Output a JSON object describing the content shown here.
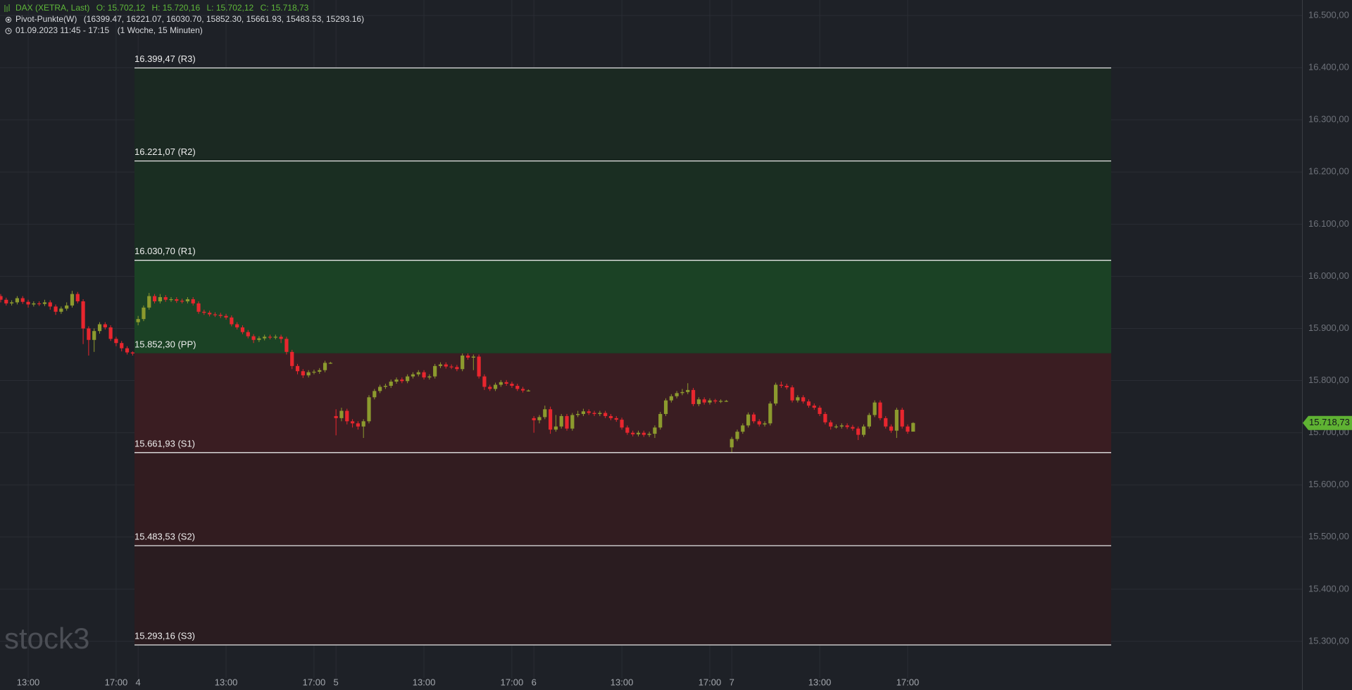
{
  "chart_data": {
    "type": "candlestick",
    "instrument": "DAX (XETRA, Last)",
    "ohlc_labels": [
      "O: 15.702,12",
      "H: 15.720,16",
      "L: 15.702,12",
      "C: 15.718,73"
    ],
    "indicator": "Pivot-Punkte(W)",
    "indicator_values": "(16399.47,  16221.07,  16030.70,  15852.30,  15661.93,  15483.53,  15293.16)",
    "period": "01.09.2023 11:45 - 17:15",
    "period_detail": "(1 Woche, 15 Minuten)",
    "watermark": "stock3",
    "last_price": {
      "value": 15718.73,
      "label": "15.718,73"
    },
    "colors": {
      "up": "#8c9a2e",
      "down": "#e8262e",
      "price_tag": "#5fb233"
    },
    "grid": true,
    "ylim": [
      15240.5,
      16529.75
    ],
    "yticks": [
      {
        "value": 16500,
        "label": "16.500,00"
      },
      {
        "value": 16400,
        "label": "16.400,00"
      },
      {
        "value": 16300,
        "label": "16.300,00"
      },
      {
        "value": 16200,
        "label": "16.200,00"
      },
      {
        "value": 16100,
        "label": "16.100,00"
      },
      {
        "value": 16000,
        "label": "16.000,00"
      },
      {
        "value": 15900,
        "label": "15.900,00"
      },
      {
        "value": 15800,
        "label": "15.800,00"
      },
      {
        "value": 15700,
        "label": "15.700,00"
      },
      {
        "value": 15600,
        "label": "15.600,00"
      },
      {
        "value": 15500,
        "label": "15.500,00"
      },
      {
        "value": 15400,
        "label": "15.400,00"
      },
      {
        "value": 15300,
        "label": "15.300,00"
      }
    ],
    "pivots": [
      {
        "value": 16399.47,
        "label": "16.399,47 (R3)"
      },
      {
        "value": 16221.07,
        "label": "16.221,07 (R2)"
      },
      {
        "value": 16030.7,
        "label": "16.030,70 (R1)"
      },
      {
        "value": 15852.3,
        "label": "15.852,30 (PP)",
        "line": false
      },
      {
        "value": 15661.93,
        "label": "15.661,93 (S1)"
      },
      {
        "value": 15483.53,
        "label": "15.483,53 (S2)"
      },
      {
        "value": 15293.16,
        "label": "15.293,16 (S3)"
      }
    ],
    "zone_colors": [
      "#1b2922",
      "#1a2e22",
      "#1b4225",
      "#3a1d22",
      "#321c20",
      "#2a1c20"
    ],
    "categories": [
      null,
      null,
      null,
      null,
      null,
      "13:00",
      null,
      null,
      null,
      null,
      null,
      null,
      null,
      null,
      null,
      null,
      null,
      null,
      null,
      null,
      null,
      "17:00",
      null,
      null,
      null,
      "4",
      null,
      null,
      null,
      null,
      null,
      null,
      null,
      null,
      null,
      null,
      null,
      null,
      null,
      null,
      null,
      "13:00",
      null,
      null,
      null,
      null,
      null,
      null,
      null,
      null,
      null,
      null,
      null,
      null,
      null,
      null,
      null,
      "17:00",
      null,
      null,
      null,
      "5",
      null,
      null,
      null,
      null,
      null,
      null,
      null,
      null,
      null,
      null,
      null,
      null,
      null,
      null,
      null,
      "13:00",
      null,
      null,
      null,
      null,
      null,
      null,
      null,
      null,
      null,
      null,
      null,
      null,
      null,
      null,
      null,
      "17:00",
      null,
      null,
      null,
      "6",
      null,
      null,
      null,
      null,
      null,
      null,
      null,
      null,
      null,
      null,
      null,
      null,
      null,
      null,
      null,
      "13:00",
      null,
      null,
      null,
      null,
      null,
      null,
      null,
      null,
      null,
      null,
      null,
      null,
      null,
      null,
      null,
      "17:00",
      null,
      null,
      null,
      "7",
      null,
      null,
      null,
      null,
      null,
      null,
      null,
      null,
      null,
      null,
      null,
      null,
      null,
      null,
      null,
      "13:00",
      null,
      null,
      null,
      null,
      null,
      null,
      null,
      null,
      null,
      null,
      null,
      null,
      null,
      null,
      null,
      "17:00",
      null
    ],
    "open": [
      15962,
      15955,
      15948,
      15950,
      15958,
      15951,
      15946,
      15948,
      15947,
      15950,
      15942,
      15932,
      15938,
      15944,
      15966,
      15952,
      15900,
      15878,
      15895,
      15908,
      15902,
      15880,
      15872,
      15862,
      15854,
      15912,
      15918,
      15940,
      15962,
      15952,
      15960,
      15955,
      15956,
      15953,
      15952,
      15956,
      15948,
      15932,
      15930,
      15927,
      15926,
      15924,
      15921,
      15908,
      15902,
      15893,
      15885,
      15878,
      15881,
      15884,
      15883,
      15884,
      15880,
      15855,
      15828,
      15818,
      15810,
      15816,
      15817,
      15820,
      15834,
      15732,
      15728,
      15742,
      15722,
      15718,
      15712,
      15722,
      15768,
      15780,
      15788,
      15790,
      15798,
      15802,
      15799,
      15808,
      15812,
      15816,
      15806,
      15808,
      15828,
      15831,
      15827,
      15826,
      15822,
      15848,
      15844,
      15846,
      15808,
      15788,
      15784,
      15792,
      15797,
      15794,
      15790,
      15784,
      15781,
      15728,
      15724,
      15730,
      15745,
      15706,
      15712,
      15732,
      15708,
      15734,
      15736,
      15741,
      15738,
      15736,
      15738,
      15732,
      15728,
      15725,
      15710,
      15700,
      15697,
      15700,
      15696,
      15698,
      15710,
      15736,
      15762,
      15770,
      15776,
      15778,
      15782,
      15755,
      15764,
      15758,
      15762,
      15760,
      15761,
      15672,
      15688,
      15702,
      15714,
      15735,
      15722,
      15716,
      15718,
      15756,
      15792,
      15790,
      15787,
      15762,
      15768,
      15760,
      15752,
      15748,
      15736,
      15720,
      15712,
      15712,
      15714,
      15711,
      15708,
      15696,
      15712,
      15734,
      15758,
      15728,
      15712,
      15704,
      15744,
      15712,
      15702.12
    ],
    "high": [
      15966,
      15959,
      15954,
      15962,
      15962,
      15955,
      15952,
      15952,
      15955,
      15954,
      15946,
      15942,
      15950,
      15972,
      15970,
      15956,
      15904,
      15900,
      15912,
      15912,
      15906,
      15884,
      15876,
      15866,
      15856,
      15924,
      15944,
      15968,
      15966,
      15966,
      15964,
      15960,
      15960,
      15957,
      15960,
      15960,
      15952,
      15936,
      15934,
      15931,
      15930,
      15928,
      15925,
      15912,
      15906,
      15897,
      15889,
      15885,
      15888,
      15888,
      15888,
      15888,
      15884,
      15859,
      15832,
      15822,
      15820,
      15821,
      15824,
      15838,
      15836,
      15745,
      15748,
      15746,
      15726,
      15722,
      15726,
      15772,
      15784,
      15792,
      15794,
      15802,
      15806,
      15806,
      15812,
      15816,
      15820,
      15820,
      15812,
      15832,
      15835,
      15835,
      15831,
      15830,
      15852,
      15852,
      15850,
      15850,
      15812,
      15792,
      15796,
      15801,
      15801,
      15798,
      15794,
      15788,
      15783,
      15732,
      15734,
      15752,
      15750,
      15734,
      15736,
      15736,
      15738,
      15742,
      15746,
      15745,
      15742,
      15742,
      15742,
      15736,
      15732,
      15729,
      15714,
      15704,
      15704,
      15704,
      15702,
      15714,
      15740,
      15766,
      15774,
      15780,
      15784,
      15795,
      15786,
      15768,
      15768,
      15766,
      15765,
      15764,
      15763,
      15692,
      15706,
      15718,
      15739,
      15739,
      15726,
      15722,
      15760,
      15796,
      15798,
      15794,
      15791,
      15772,
      15772,
      15764,
      15756,
      15752,
      15740,
      15724,
      15716,
      15718,
      15718,
      15715,
      15712,
      15716,
      15738,
      15762,
      15762,
      15732,
      15716,
      15748,
      15748,
      15716,
      15720.16
    ],
    "low": [
      15950,
      15944,
      15944,
      15946,
      15947,
      15940,
      15942,
      15943,
      15943,
      15936,
      15926,
      15928,
      15934,
      15940,
      15948,
      15870,
      15848,
      15855,
      15890,
      15898,
      15876,
      15866,
      15856,
      15850,
      15848,
      15906,
      15914,
      15936,
      15948,
      15948,
      15951,
      15951,
      15949,
      15948,
      15948,
      15944,
      15928,
      15926,
      15923,
      15922,
      15920,
      15917,
      15904,
      15898,
      15889,
      15881,
      15872,
      15874,
      15877,
      15879,
      15879,
      15872,
      15850,
      15822,
      15812,
      15805,
      15806,
      15812,
      15813,
      15816,
      15832,
      15695,
      15722,
      15716,
      15710,
      15706,
      15690,
      15718,
      15764,
      15776,
      15784,
      15786,
      15794,
      15795,
      15795,
      15804,
      15808,
      15802,
      15802,
      15804,
      15824,
      15823,
      15822,
      15818,
      15818,
      15840,
      15820,
      15804,
      15782,
      15780,
      15780,
      15788,
      15790,
      15786,
      15780,
      15777,
      15779,
      15700,
      15718,
      15726,
      15698,
      15702,
      15708,
      15704,
      15704,
      15730,
      15732,
      15734,
      15732,
      15732,
      15728,
      15724,
      15721,
      15706,
      15696,
      15693,
      15693,
      15692,
      15692,
      15690,
      15706,
      15732,
      15758,
      15766,
      15772,
      15774,
      15751,
      15751,
      15754,
      15754,
      15756,
      15757,
      15759,
      15662,
      15684,
      15698,
      15710,
      15718,
      15712,
      15712,
      15714,
      15752,
      15786,
      15783,
      15758,
      15758,
      15756,
      15748,
      15744,
      15732,
      15716,
      15706,
      15708,
      15708,
      15707,
      15704,
      15686,
      15692,
      15708,
      15730,
      15724,
      15708,
      15700,
      15690,
      15708,
      15698,
      15702.12
    ],
    "close": [
      15955,
      15948,
      15950,
      15958,
      15951,
      15946,
      15948,
      15947,
      15950,
      15942,
      15932,
      15938,
      15944,
      15966,
      15952,
      15900,
      15878,
      15895,
      15908,
      15902,
      15880,
      15872,
      15862,
      15854,
      15852,
      15918,
      15940,
      15962,
      15952,
      15960,
      15955,
      15956,
      15953,
      15952,
      15956,
      15948,
      15932,
      15930,
      15927,
      15926,
      15924,
      15921,
      15908,
      15902,
      15893,
      15885,
      15878,
      15881,
      15884,
      15883,
      15884,
      15880,
      15855,
      15828,
      15818,
      15810,
      15816,
      15817,
      15820,
      15834,
      15834,
      15728,
      15742,
      15722,
      15718,
      15712,
      15722,
      15768,
      15780,
      15788,
      15790,
      15798,
      15802,
      15799,
      15808,
      15812,
      15816,
      15806,
      15808,
      15828,
      15831,
      15827,
      15826,
      15822,
      15848,
      15844,
      15846,
      15808,
      15788,
      15784,
      15792,
      15797,
      15794,
      15790,
      15784,
      15781,
      15781,
      15724,
      15730,
      15745,
      15706,
      15712,
      15732,
      15708,
      15734,
      15736,
      15741,
      15738,
      15736,
      15738,
      15732,
      15728,
      15725,
      15710,
      15700,
      15697,
      15700,
      15696,
      15698,
      15710,
      15736,
      15762,
      15770,
      15776,
      15778,
      15782,
      15755,
      15764,
      15758,
      15762,
      15760,
      15761,
      15761,
      15688,
      15702,
      15714,
      15735,
      15722,
      15716,
      15718,
      15756,
      15792,
      15790,
      15787,
      15762,
      15768,
      15760,
      15752,
      15748,
      15736,
      15720,
      15712,
      15712,
      15714,
      15711,
      15708,
      15696,
      15712,
      15734,
      15758,
      15728,
      15712,
      15704,
      15744,
      15712,
      15702.12,
      15718.73
    ]
  }
}
